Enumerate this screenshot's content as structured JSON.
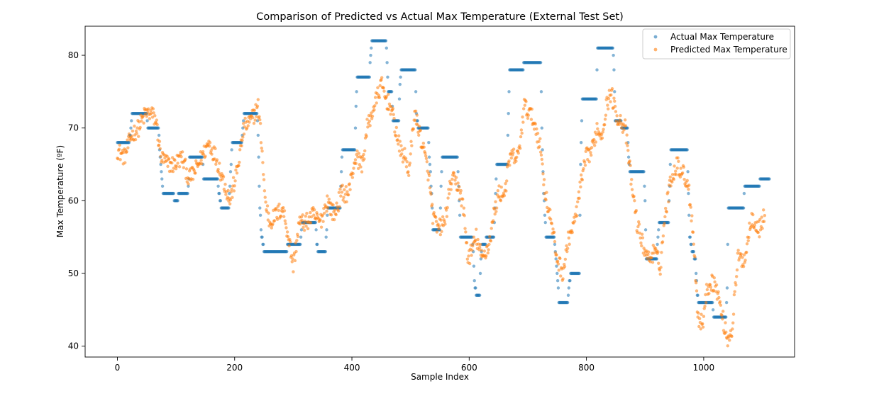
{
  "chart_data": {
    "type": "scatter",
    "title": "Comparison of Predicted vs Actual Max Temperature (External Test Set)",
    "xlabel": "Sample Index",
    "ylabel": "Max Temperature (ºF)",
    "xlim": [
      -55,
      1155
    ],
    "ylim": [
      38.5,
      84
    ],
    "xticks": [
      0,
      200,
      400,
      600,
      800,
      1000
    ],
    "yticks": [
      40,
      50,
      60,
      70,
      80
    ],
    "grid": false,
    "legend_position": "top-right",
    "series": [
      {
        "name": "Actual Max Temperature",
        "color": "#1f77b4",
        "segments": [
          [
            0,
            68
          ],
          [
            20,
            68
          ],
          [
            22,
            69
          ],
          [
            25,
            72
          ],
          [
            50,
            72
          ],
          [
            52,
            70
          ],
          [
            70,
            70
          ],
          [
            72,
            67
          ],
          [
            78,
            61
          ],
          [
            95,
            61
          ],
          [
            97,
            60
          ],
          [
            102,
            60
          ],
          [
            105,
            61
          ],
          [
            120,
            61
          ],
          [
            122,
            63
          ],
          [
            123,
            66
          ],
          [
            145,
            66
          ],
          [
            147,
            63
          ],
          [
            170,
            63
          ],
          [
            172,
            62
          ],
          [
            175,
            60
          ],
          [
            177,
            59
          ],
          [
            190,
            59
          ],
          [
            194,
            65
          ],
          [
            196,
            68
          ],
          [
            212,
            68
          ],
          [
            214,
            70
          ],
          [
            216,
            72
          ],
          [
            238,
            72
          ],
          [
            240,
            69
          ],
          [
            243,
            59
          ],
          [
            246,
            55
          ],
          [
            250,
            53
          ],
          [
            288,
            53
          ],
          [
            291,
            54
          ],
          [
            312,
            54
          ],
          [
            315,
            57
          ],
          [
            338,
            57
          ],
          [
            340,
            54
          ],
          [
            343,
            53
          ],
          [
            355,
            53
          ],
          [
            357,
            56
          ],
          [
            359,
            59
          ],
          [
            380,
            59
          ],
          [
            382,
            64
          ],
          [
            384,
            67
          ],
          [
            405,
            67
          ],
          [
            407,
            73
          ],
          [
            409,
            77
          ],
          [
            430,
            77
          ],
          [
            432,
            80
          ],
          [
            434,
            82
          ],
          [
            458,
            82
          ],
          [
            460,
            79
          ],
          [
            462,
            75
          ],
          [
            468,
            75
          ],
          [
            470,
            71
          ],
          [
            480,
            71
          ],
          [
            482,
            76
          ],
          [
            484,
            78
          ],
          [
            508,
            78
          ],
          [
            510,
            72
          ],
          [
            513,
            70
          ],
          [
            530,
            70
          ],
          [
            532,
            66
          ],
          [
            536,
            61
          ],
          [
            538,
            56
          ],
          [
            550,
            56
          ],
          [
            552,
            62
          ],
          [
            554,
            66
          ],
          [
            580,
            66
          ],
          [
            582,
            62
          ],
          [
            584,
            58
          ],
          [
            585,
            55
          ],
          [
            605,
            55
          ],
          [
            607,
            53
          ],
          [
            609,
            49
          ],
          [
            612,
            47
          ],
          [
            618,
            47
          ],
          [
            620,
            52
          ],
          [
            622,
            54
          ],
          [
            628,
            54
          ],
          [
            630,
            55
          ],
          [
            642,
            55
          ],
          [
            645,
            61
          ],
          [
            647,
            65
          ],
          [
            665,
            65
          ],
          [
            667,
            72
          ],
          [
            669,
            78
          ],
          [
            692,
            78
          ],
          [
            694,
            79
          ],
          [
            722,
            79
          ],
          [
            724,
            70
          ],
          [
            727,
            61
          ],
          [
            731,
            55
          ],
          [
            745,
            55
          ],
          [
            747,
            53
          ],
          [
            751,
            49
          ],
          [
            753,
            46
          ],
          [
            768,
            46
          ],
          [
            770,
            48
          ],
          [
            773,
            50
          ],
          [
            788,
            50
          ],
          [
            790,
            65
          ],
          [
            793,
            74
          ],
          [
            817,
            74
          ],
          [
            819,
            81
          ],
          [
            845,
            81
          ],
          [
            847,
            78
          ],
          [
            849,
            71
          ],
          [
            858,
            71
          ],
          [
            860,
            70
          ],
          [
            870,
            70
          ],
          [
            872,
            66
          ],
          [
            874,
            64
          ],
          [
            898,
            64
          ],
          [
            900,
            60
          ],
          [
            902,
            52
          ],
          [
            920,
            52
          ],
          [
            922,
            55
          ],
          [
            924,
            57
          ],
          [
            940,
            57
          ],
          [
            942,
            62
          ],
          [
            944,
            67
          ],
          [
            972,
            67
          ],
          [
            974,
            61
          ],
          [
            976,
            55
          ],
          [
            980,
            53
          ],
          [
            986,
            52
          ],
          [
            989,
            47
          ],
          [
            991,
            46
          ],
          [
            1015,
            46
          ],
          [
            1017,
            44
          ],
          [
            1038,
            44
          ],
          [
            1040,
            48
          ],
          [
            1042,
            59
          ],
          [
            1068,
            59
          ],
          [
            1070,
            62
          ],
          [
            1095,
            62
          ],
          [
            1097,
            63
          ],
          [
            1112,
            63
          ]
        ]
      },
      {
        "name": "Predicted Max Temperature",
        "color": "#ff7f0e",
        "segments": [
          [
            0,
            67
          ],
          [
            12,
            66
          ],
          [
            24,
            69
          ],
          [
            36,
            70
          ],
          [
            48,
            72
          ],
          [
            58,
            72
          ],
          [
            66,
            71
          ],
          [
            74,
            66
          ],
          [
            86,
            65
          ],
          [
            98,
            65
          ],
          [
            110,
            66
          ],
          [
            122,
            63
          ],
          [
            132,
            64
          ],
          [
            144,
            66
          ],
          [
            156,
            68
          ],
          [
            168,
            66
          ],
          [
            180,
            63
          ],
          [
            192,
            60
          ],
          [
            204,
            64
          ],
          [
            216,
            70
          ],
          [
            228,
            71
          ],
          [
            240,
            73
          ],
          [
            246,
            68
          ],
          [
            252,
            60
          ],
          [
            260,
            57
          ],
          [
            270,
            58
          ],
          [
            282,
            59
          ],
          [
            292,
            55
          ],
          [
            300,
            51
          ],
          [
            310,
            57
          ],
          [
            322,
            57
          ],
          [
            334,
            58
          ],
          [
            346,
            57
          ],
          [
            358,
            60
          ],
          [
            370,
            58
          ],
          [
            382,
            61
          ],
          [
            394,
            61
          ],
          [
            406,
            66
          ],
          [
            418,
            65
          ],
          [
            426,
            70
          ],
          [
            434,
            72
          ],
          [
            442,
            74
          ],
          [
            450,
            76
          ],
          [
            458,
            74
          ],
          [
            466,
            73
          ],
          [
            474,
            70
          ],
          [
            482,
            67
          ],
          [
            490,
            66
          ],
          [
            498,
            64
          ],
          [
            506,
            72
          ],
          [
            514,
            70
          ],
          [
            522,
            67
          ],
          [
            530,
            64
          ],
          [
            538,
            58
          ],
          [
            546,
            56
          ],
          [
            558,
            57
          ],
          [
            570,
            63
          ],
          [
            582,
            62
          ],
          [
            590,
            59
          ],
          [
            598,
            52
          ],
          [
            604,
            53
          ],
          [
            612,
            55
          ],
          [
            622,
            52
          ],
          [
            634,
            54
          ],
          [
            642,
            58
          ],
          [
            650,
            61
          ],
          [
            660,
            61
          ],
          [
            670,
            66
          ],
          [
            684,
            66
          ],
          [
            694,
            73
          ],
          [
            704,
            72
          ],
          [
            714,
            70
          ],
          [
            722,
            67
          ],
          [
            730,
            61
          ],
          [
            740,
            57
          ],
          [
            750,
            52
          ],
          [
            760,
            50
          ],
          [
            770,
            55
          ],
          [
            780,
            57
          ],
          [
            790,
            62
          ],
          [
            800,
            66
          ],
          [
            810,
            67
          ],
          [
            818,
            70
          ],
          [
            826,
            69
          ],
          [
            834,
            73
          ],
          [
            842,
            75
          ],
          [
            850,
            72
          ],
          [
            858,
            71
          ],
          [
            866,
            70
          ],
          [
            876,
            63
          ],
          [
            886,
            57
          ],
          [
            896,
            54
          ],
          [
            906,
            52
          ],
          [
            916,
            53
          ],
          [
            926,
            51
          ],
          [
            934,
            58
          ],
          [
            944,
            63
          ],
          [
            954,
            65
          ],
          [
            964,
            64
          ],
          [
            974,
            62
          ],
          [
            982,
            56
          ],
          [
            990,
            44
          ],
          [
            998,
            43
          ],
          [
            1006,
            48
          ],
          [
            1014,
            49
          ],
          [
            1022,
            48
          ],
          [
            1032,
            44
          ],
          [
            1040,
            41
          ],
          [
            1048,
            42
          ],
          [
            1058,
            52
          ],
          [
            1070,
            52
          ],
          [
            1082,
            58
          ],
          [
            1094,
            56
          ],
          [
            1104,
            58
          ]
        ]
      }
    ]
  }
}
